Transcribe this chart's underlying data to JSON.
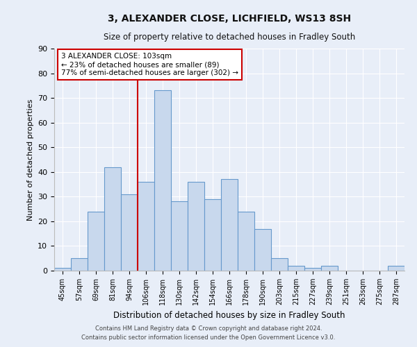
{
  "title": "3, ALEXANDER CLOSE, LICHFIELD, WS13 8SH",
  "subtitle": "Size of property relative to detached houses in Fradley South",
  "xlabel": "Distribution of detached houses by size in Fradley South",
  "ylabel": "Number of detached properties",
  "bin_labels": [
    "45sqm",
    "57sqm",
    "69sqm",
    "81sqm",
    "94sqm",
    "106sqm",
    "118sqm",
    "130sqm",
    "142sqm",
    "154sqm",
    "166sqm",
    "178sqm",
    "190sqm",
    "203sqm",
    "215sqm",
    "227sqm",
    "239sqm",
    "251sqm",
    "263sqm",
    "275sqm",
    "287sqm"
  ],
  "bar_heights": [
    1,
    5,
    24,
    42,
    31,
    36,
    73,
    28,
    36,
    29,
    37,
    24,
    17,
    5,
    2,
    1,
    2,
    0,
    0,
    0,
    2
  ],
  "bar_color": "#c8d8ed",
  "bar_edge_color": "#6699cc",
  "background_color": "#e8eef8",
  "grid_color": "#ffffff",
  "vline_x_index": 5,
  "vline_color": "#cc0000",
  "annotation_title": "3 ALEXANDER CLOSE: 103sqm",
  "annotation_line1": "← 23% of detached houses are smaller (89)",
  "annotation_line2": "77% of semi-detached houses are larger (302) →",
  "annotation_box_color": "#ffffff",
  "annotation_box_edge_color": "#cc0000",
  "ylim": [
    0,
    90
  ],
  "yticks": [
    0,
    10,
    20,
    30,
    40,
    50,
    60,
    70,
    80,
    90
  ],
  "title_fontsize": 10,
  "subtitle_fontsize": 8.5,
  "footnote1": "Contains HM Land Registry data © Crown copyright and database right 2024.",
  "footnote2": "Contains public sector information licensed under the Open Government Licence v3.0."
}
